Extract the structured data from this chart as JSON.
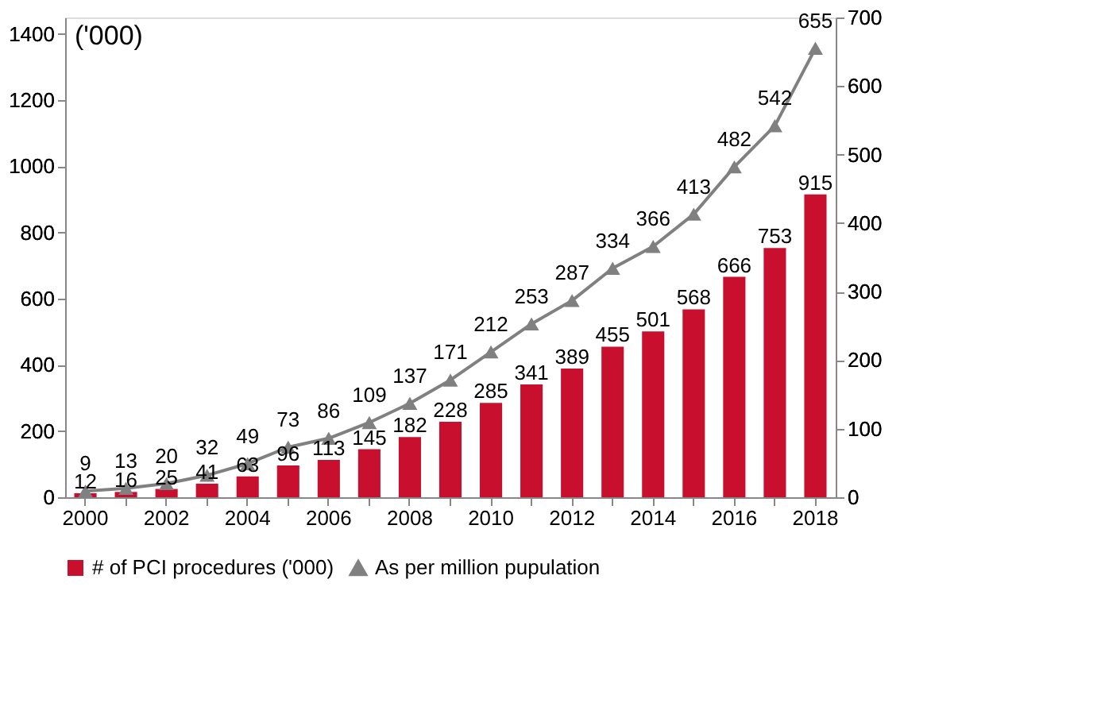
{
  "chart_data": {
    "type": "bar",
    "categories": [
      "2000",
      null,
      "2002",
      null,
      "2004",
      null,
      "2006",
      null,
      "2008",
      null,
      "2010",
      null,
      "2012",
      null,
      "2014",
      null,
      "2016",
      null,
      "2018"
    ],
    "series": [
      {
        "name": "# of PCI procedures ('000)",
        "color": "#c8102e",
        "values": [
          12,
          16,
          25,
          41,
          63,
          96,
          113,
          145,
          182,
          228,
          285,
          341,
          389,
          455,
          501,
          568,
          666,
          753,
          915
        ]
      },
      {
        "name": "As per million pupulation",
        "type": "line",
        "axis": "y2",
        "color": "#808080",
        "marker": "triangle",
        "values": [
          9,
          13,
          20,
          32,
          49,
          73,
          86,
          109,
          137,
          171,
          212,
          253,
          287,
          334,
          366,
          413,
          482,
          542,
          655
        ]
      }
    ],
    "ylim": [
      0,
      1450
    ],
    "yticks": [
      0,
      200,
      400,
      600,
      800,
      1000,
      1200,
      1400
    ],
    "y2lim": [
      0,
      700
    ],
    "y2ticks": [
      0,
      100,
      200,
      300,
      400,
      500,
      600,
      700
    ],
    "annotations": [
      "('000)"
    ],
    "data_labels": true,
    "grid": false,
    "legend": "bottom"
  }
}
